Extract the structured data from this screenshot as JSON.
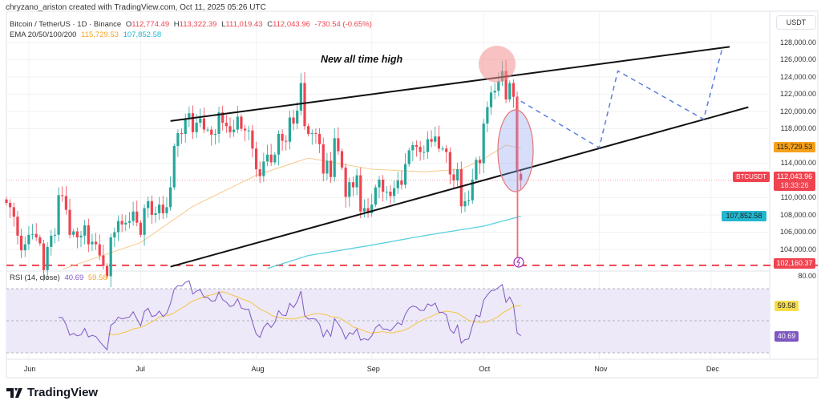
{
  "credit": "chryzano_ariston created with TradingView.com, Oct 11, 2025 05:26 UTC",
  "symbol": "Bitcoin / TetherUS · 1D · Binance",
  "ohlc": {
    "o_label": "O",
    "o": "112,774.49",
    "h_label": "H",
    "h": "113,322.39",
    "l_label": "L",
    "l": "111,019.43",
    "c_label": "C",
    "c": "112,043.96",
    "change": "-730.54 (-0.65%)"
  },
  "ema": {
    "label": "EMA 20/50/100/200",
    "value1": "115,729.53",
    "value2": "107,852.58"
  },
  "rsi": {
    "label": "RSI (14, close)",
    "value": "40.69",
    "ma": "59.58",
    "level_label": "80.00"
  },
  "annotation": "New all time high",
  "currency": "USDT",
  "price_tags": {
    "ema1": "115,729.53",
    "ticker": "BTCUSDT",
    "last": "112,043.96",
    "countdown": "18:33:26",
    "ema2": "107,852.58",
    "support": "102,160.37"
  },
  "brand": "TradingView",
  "colors": {
    "up": "#26a69a",
    "down": "#ef4350",
    "ema1": "#f5a623",
    "ema2": "#22b7cf",
    "rsi": "#7e57c2",
    "rsi_ma": "#f5c542",
    "trend": "#111111",
    "projection": "#5b7fe0"
  },
  "chart_data": {
    "type": "candlestick",
    "interval": "1D",
    "start_date": "2025-05-26",
    "end_date": "2025-10-11",
    "y_axis": {
      "ticks": [
        104000,
        106000,
        108000,
        110000,
        114000,
        118000,
        120000,
        122000,
        124000,
        126000,
        128000
      ],
      "tick_labels": [
        "104,000.00",
        "106,000.00",
        "108,000.00",
        "110,000.00",
        "114,000.00",
        "118,000.00",
        "120,000.00",
        "122,000.00",
        "124,000.00",
        "126,000.00",
        "128,000.00"
      ],
      "range": [
        102000,
        129500
      ]
    },
    "x_axis": {
      "tick_labels": [
        "Jun",
        "Jul",
        "Aug",
        "Sep",
        "Oct",
        "Nov",
        "Dec"
      ]
    },
    "closes": [
      109400,
      108900,
      107800,
      105600,
      103900,
      104600,
      105700,
      105800,
      105400,
      104700,
      101600,
      104300,
      105600,
      105700,
      110300,
      110200,
      108600,
      105700,
      106100,
      105400,
      105600,
      106800,
      104600,
      104900,
      104600,
      103300,
      102100,
      100900,
      105400,
      106000,
      107300,
      106900,
      107100,
      107300,
      108400,
      107100,
      105700,
      108800,
      109600,
      108000,
      108200,
      109200,
      108200,
      108900,
      111200,
      116000,
      117500,
      117400,
      119100,
      119800,
      117600,
      118700,
      119200,
      117900,
      117900,
      117300,
      117400,
      119900,
      118700,
      118300,
      117600,
      117900,
      119400,
      118000,
      117800,
      117800,
      115700,
      113300,
      112500,
      114200,
      115000,
      114100,
      115000,
      117400,
      116600,
      116500,
      119300,
      118600,
      120100,
      123300,
      118300,
      117400,
      117500,
      117400,
      116200,
      112800,
      114300,
      112400,
      116900,
      115400,
      113500,
      110100,
      111800,
      111200,
      112600,
      108400,
      108800,
      108200,
      109200,
      111200,
      112100,
      110700,
      110700,
      110200,
      111100,
      112000,
      111500,
      113900,
      115500,
      116100,
      115900,
      115300,
      115300,
      116800,
      116500,
      117100,
      115700,
      115700,
      115300,
      112700,
      112000,
      113300,
      109000,
      109600,
      109700,
      112100,
      114400,
      114000,
      118600,
      120500,
      122200,
      122400,
      123500,
      124700,
      121400,
      123300,
      121700,
      113200,
      112044
    ],
    "last_candle": {
      "open": 112774.49,
      "high": 113322.39,
      "low": 111019.43,
      "close": 112043.96
    },
    "ema_fast_points": [
      [
        "2025-06-10",
        101700
      ],
      [
        "2025-07-01",
        104800
      ],
      [
        "2025-07-15",
        109000
      ],
      [
        "2025-08-01",
        112600
      ],
      [
        "2025-08-15",
        114600
      ],
      [
        "2025-09-01",
        113300
      ],
      [
        "2025-09-15",
        113000
      ],
      [
        "2025-09-25",
        113300
      ],
      [
        "2025-10-01",
        114500
      ],
      [
        "2025-10-07",
        116100
      ],
      [
        "2025-10-11",
        115729.53
      ]
    ],
    "ema_slow_points": [
      [
        "2025-08-04",
        101800
      ],
      [
        "2025-08-15",
        103300
      ],
      [
        "2025-09-01",
        104500
      ],
      [
        "2025-09-15",
        105600
      ],
      [
        "2025-10-01",
        106700
      ],
      [
        "2025-10-11",
        107852.58
      ]
    ],
    "horizontal_levels": [
      {
        "price": 102160.37,
        "style": "dashed"
      },
      {
        "price": 112043.96,
        "style": "dotted"
      }
    ],
    "trendlines": [
      {
        "from": [
          "2025-07-09",
          118900
        ],
        "to": [
          "2025-12-06",
          127500
        ]
      },
      {
        "from": [
          "2025-07-09",
          102000
        ],
        "to": [
          "2025-12-11",
          120500
        ]
      }
    ],
    "projection_path": [
      [
        "2025-10-11",
        121200
      ],
      [
        "2025-11-01",
        115800
      ],
      [
        "2025-11-06",
        124700
      ],
      [
        "2025-11-29",
        119100
      ],
      [
        "2025-12-04",
        127300
      ]
    ],
    "rsi_panel": {
      "levels": [
        70,
        50,
        30
      ],
      "current": 40.69,
      "ma": 59.58
    }
  }
}
